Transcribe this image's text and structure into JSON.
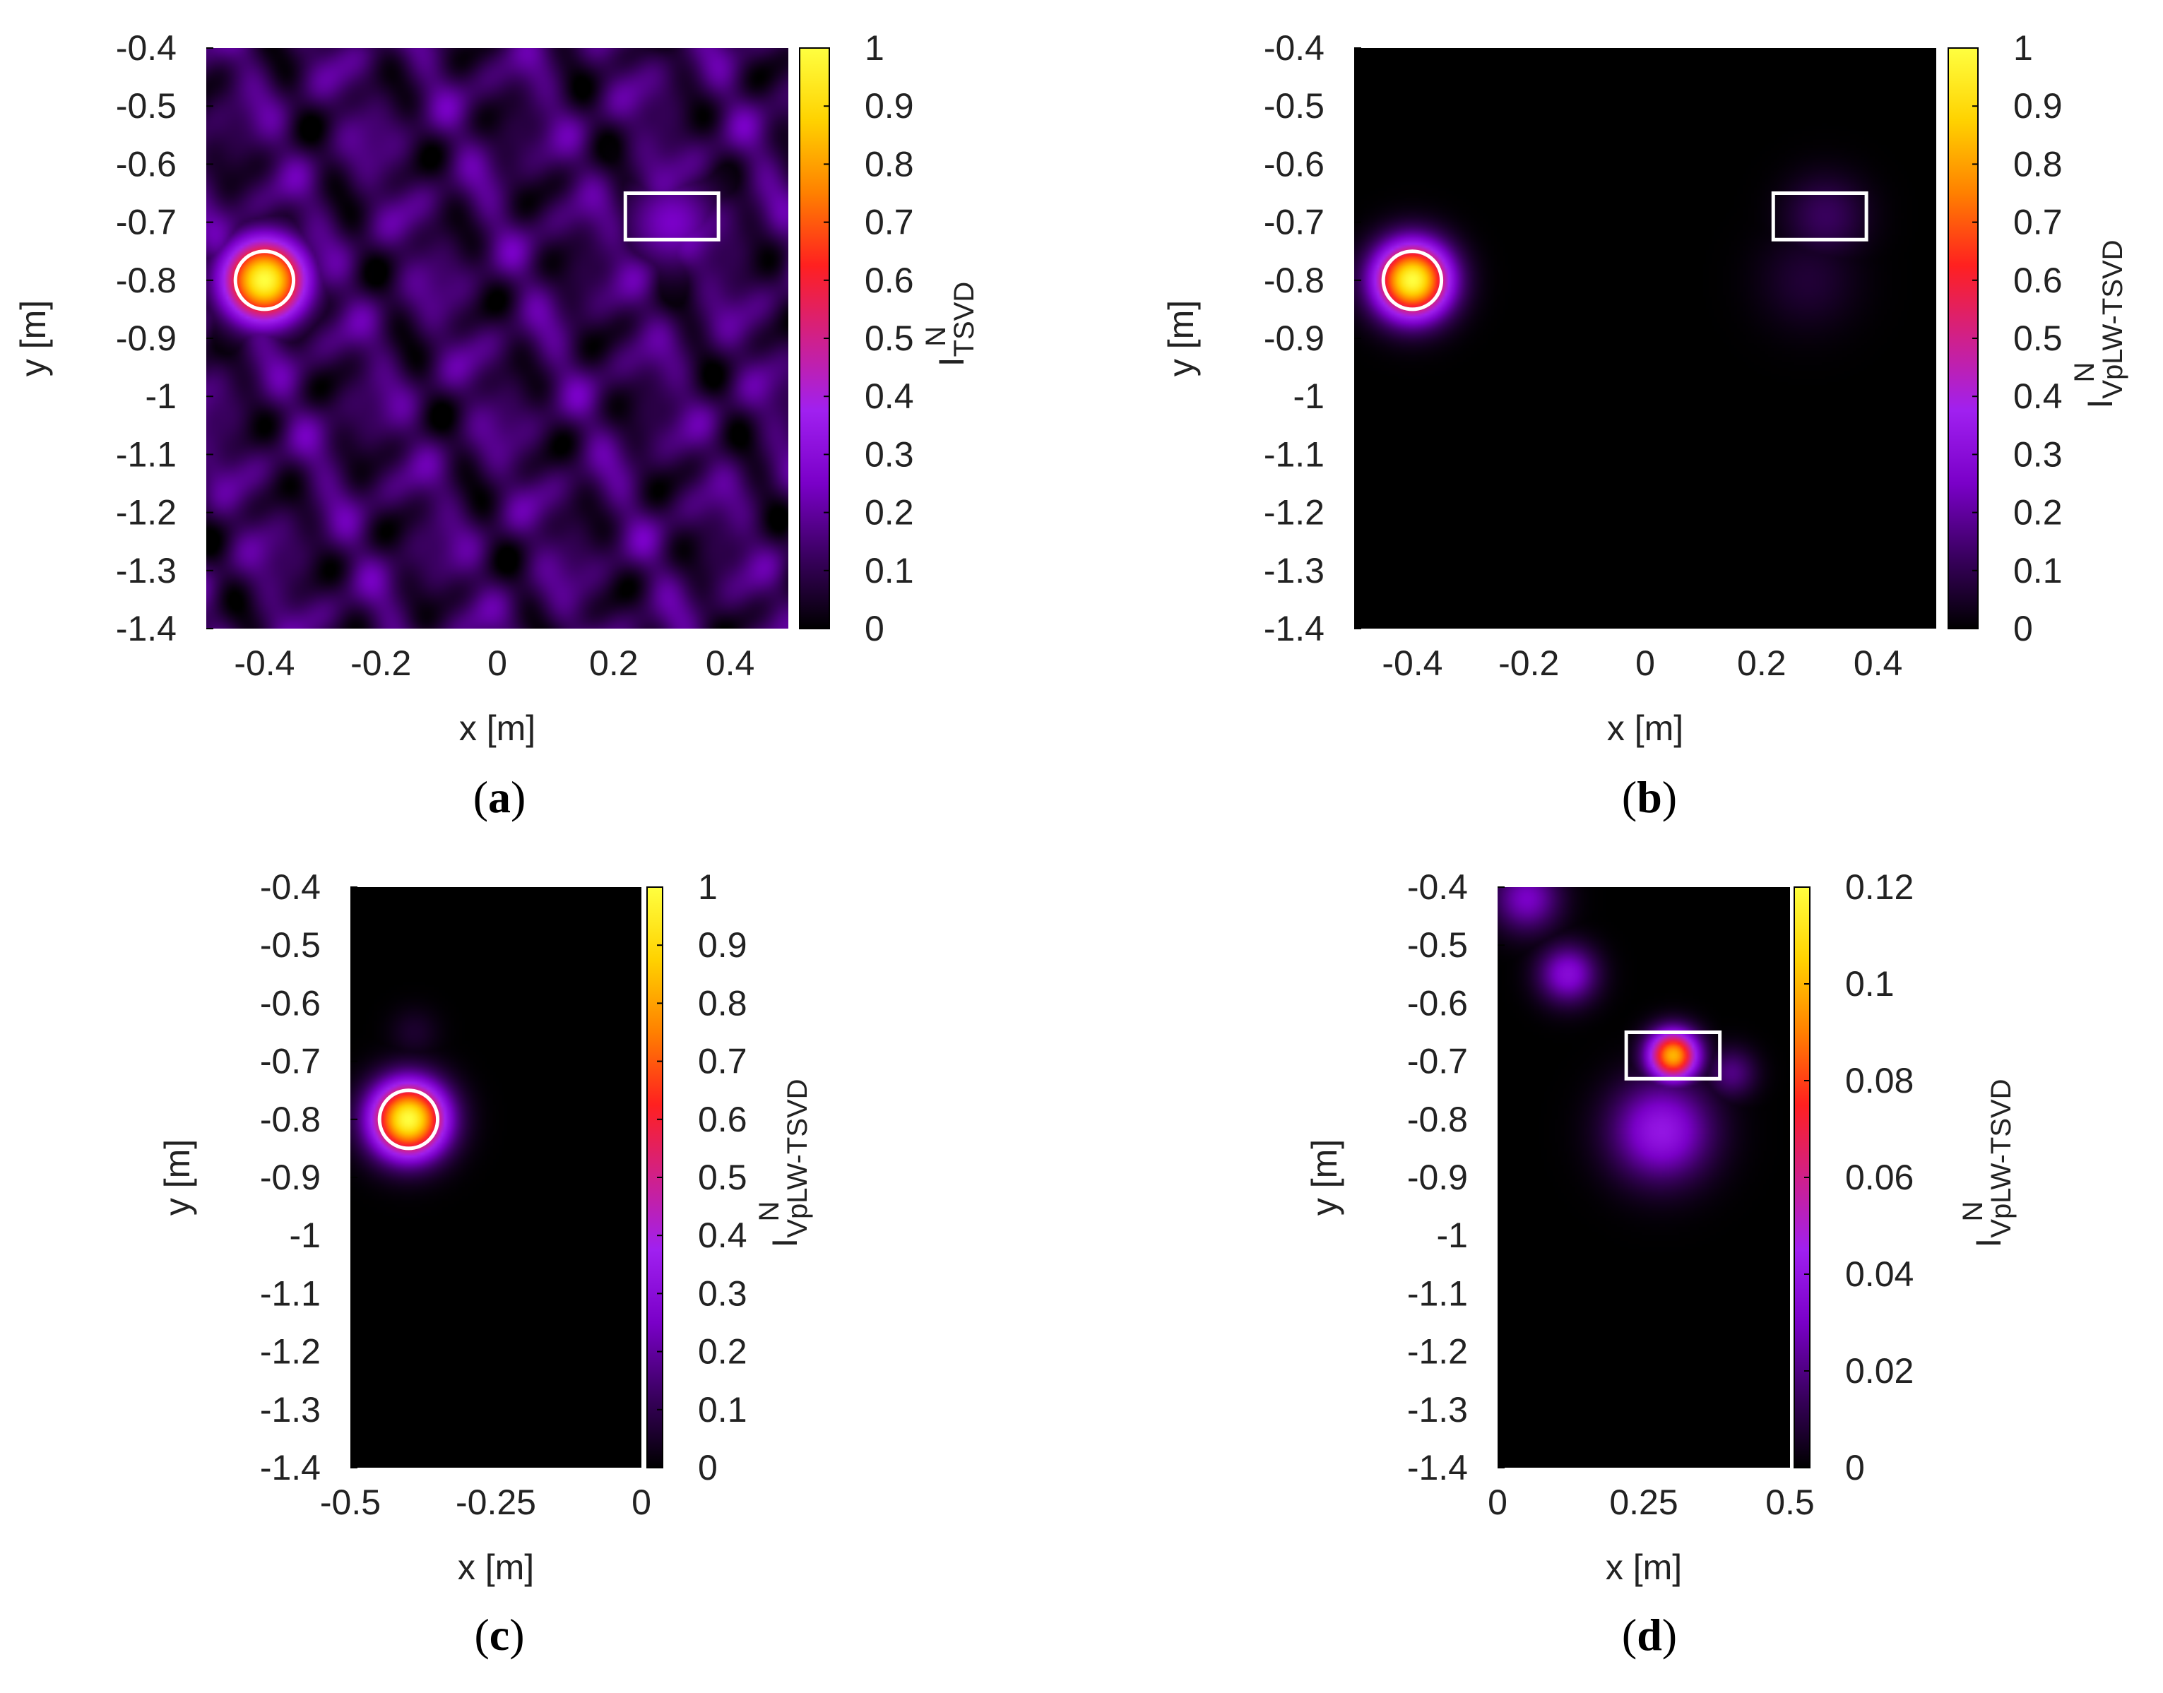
{
  "colors": {
    "background": "#000000",
    "marker": "#ffffff",
    "colormap": [
      "#000000",
      "#3a0060",
      "#7a00c8",
      "#a020f0",
      "#d0208a",
      "#ff2020",
      "#ff8000",
      "#ffd200",
      "#ffff40"
    ]
  },
  "chart_data": [
    {
      "type": "heatmap",
      "caption": "a",
      "xlabel": "x [m]",
      "ylabel": "y [m]",
      "xlim": [
        -0.5,
        0.5
      ],
      "ylim": [
        -1.4,
        -0.4
      ],
      "xticks": [
        "-0.4",
        "-0.2",
        "0",
        "0.2",
        "0.4"
      ],
      "yticks": [
        "-0.4",
        "-0.5",
        "-0.6",
        "-0.7",
        "-0.8",
        "-0.9",
        "-1",
        "-1.1",
        "-1.2",
        "-1.3",
        "-1.4"
      ],
      "colorbar": {
        "label_main": "I",
        "label_sup": "N",
        "label_sub": "TSVD",
        "min": 0,
        "max": 1,
        "ticks": [
          "0",
          "0.1",
          "0.2",
          "0.3",
          "0.4",
          "0.5",
          "0.6",
          "0.7",
          "0.8",
          "0.9",
          "1"
        ]
      },
      "clutter_level": 0.22,
      "peaks": [
        {
          "x": -0.4,
          "y": -0.8,
          "value": 1.0,
          "radius": 0.05
        },
        {
          "x": 0.3,
          "y": -0.7,
          "value": 0.25,
          "radius": 0.06
        }
      ],
      "targets": [
        {
          "shape": "circle",
          "x": -0.4,
          "y": -0.8,
          "r": 0.05
        },
        {
          "shape": "rectangle",
          "x0": 0.22,
          "x1": 0.38,
          "y0": -0.73,
          "y1": -0.65
        }
      ]
    },
    {
      "type": "heatmap",
      "caption": "b",
      "xlabel": "x [m]",
      "ylabel": "y [m]",
      "xlim": [
        -0.5,
        0.5
      ],
      "ylim": [
        -1.4,
        -0.4
      ],
      "xticks": [
        "-0.4",
        "-0.2",
        "0",
        "0.2",
        "0.4"
      ],
      "yticks": [
        "-0.4",
        "-0.5",
        "-0.6",
        "-0.7",
        "-0.8",
        "-0.9",
        "-1",
        "-1.1",
        "-1.2",
        "-1.3",
        "-1.4"
      ],
      "colorbar": {
        "label_main": "I",
        "label_sup": "N",
        "label_sub": "VpLW-TSVD",
        "min": 0,
        "max": 1,
        "ticks": [
          "0",
          "0.1",
          "0.2",
          "0.3",
          "0.4",
          "0.5",
          "0.6",
          "0.7",
          "0.8",
          "0.9",
          "1"
        ]
      },
      "clutter_level": 0.0,
      "peaks": [
        {
          "x": -0.4,
          "y": -0.8,
          "value": 1.0,
          "radius": 0.045
        },
        {
          "x": 0.31,
          "y": -0.69,
          "value": 0.12,
          "radius": 0.05
        },
        {
          "x": 0.28,
          "y": -0.8,
          "value": 0.07,
          "radius": 0.06
        }
      ],
      "targets": [
        {
          "shape": "circle",
          "x": -0.4,
          "y": -0.8,
          "r": 0.05
        },
        {
          "shape": "rectangle",
          "x0": 0.22,
          "x1": 0.38,
          "y0": -0.73,
          "y1": -0.65
        }
      ]
    },
    {
      "type": "heatmap",
      "caption": "c",
      "xlabel": "x [m]",
      "ylabel": "y [m]",
      "xlim": [
        -0.5,
        0
      ],
      "ylim": [
        -1.4,
        -0.4
      ],
      "xticks": [
        "-0.5",
        "-0.25",
        "0"
      ],
      "yticks": [
        "-0.4",
        "-0.5",
        "-0.6",
        "-0.7",
        "-0.8",
        "-0.9",
        "-1",
        "-1.1",
        "-1.2",
        "-1.3",
        "-1.4"
      ],
      "colorbar": {
        "label_main": "I",
        "label_sup": "N",
        "label_sub": "VpLW-TSVD",
        "min": 0,
        "max": 1,
        "ticks": [
          "0",
          "0.1",
          "0.2",
          "0.3",
          "0.4",
          "0.5",
          "0.6",
          "0.7",
          "0.8",
          "0.9",
          "1"
        ]
      },
      "clutter_level": 0.0,
      "peaks": [
        {
          "x": -0.4,
          "y": -0.8,
          "value": 1.0,
          "radius": 0.045
        },
        {
          "x": -0.39,
          "y": -0.65,
          "value": 0.06,
          "radius": 0.03
        }
      ],
      "targets": [
        {
          "shape": "circle",
          "x": -0.4,
          "y": -0.8,
          "r": 0.05
        }
      ]
    },
    {
      "type": "heatmap",
      "caption": "d",
      "xlabel": "x [m]",
      "ylabel": "y [m]",
      "xlim": [
        0,
        0.5
      ],
      "ylim": [
        -1.4,
        -0.4
      ],
      "xticks": [
        "0",
        "0.25",
        "0.5"
      ],
      "yticks": [
        "-0.4",
        "-0.5",
        "-0.6",
        "-0.7",
        "-0.8",
        "-0.9",
        "-1",
        "-1.1",
        "-1.2",
        "-1.3",
        "-1.4"
      ],
      "colorbar": {
        "label_main": "I",
        "label_sup": "N",
        "label_sub": "VpLW-TSVD",
        "min": 0,
        "max": 0.12,
        "ticks": [
          "0",
          "0.02",
          "0.04",
          "0.06",
          "0.08",
          "0.1",
          "0.12"
        ]
      },
      "clutter_level": 0.0,
      "peaks": [
        {
          "x": 0.3,
          "y": -0.69,
          "value": 0.1,
          "radius": 0.03
        },
        {
          "x": 0.28,
          "y": -0.82,
          "value": 0.04,
          "radius": 0.06
        },
        {
          "x": 0.12,
          "y": -0.55,
          "value": 0.035,
          "radius": 0.035
        },
        {
          "x": 0.05,
          "y": -0.42,
          "value": 0.03,
          "radius": 0.04
        },
        {
          "x": 0.4,
          "y": -0.72,
          "value": 0.02,
          "radius": 0.03
        }
      ],
      "targets": [
        {
          "shape": "rectangle",
          "x0": 0.22,
          "x1": 0.38,
          "y0": -0.73,
          "y1": -0.65
        }
      ]
    }
  ]
}
